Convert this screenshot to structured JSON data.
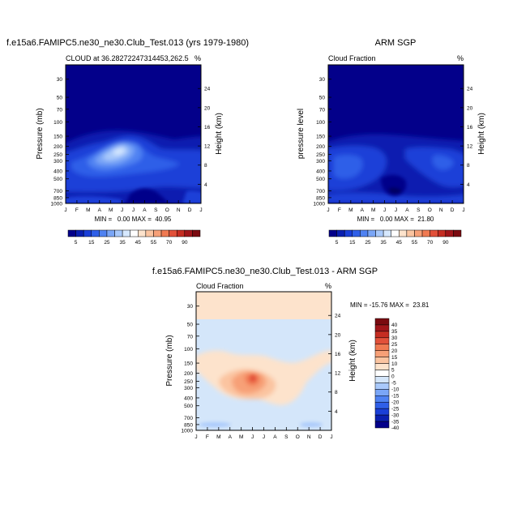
{
  "colors": {
    "model_fill_top": "#03008a",
    "obs_fill_top": "#03008a",
    "diff_fill_top": "#fde3cc",
    "diff_fill_bottom": "#d4e6fa"
  },
  "chart_data": [
    {
      "type": "heatmap",
      "id": "model",
      "title": "f.e15a6.FAMIPC5.ne30_ne30.Club_Test.013 (yrs 1979-1980)",
      "subtitle_left": "CLOUD at 36.28272247314453,262.5",
      "subtitle_right": "%",
      "ylabel": "Pressure (mb)",
      "ylabel_right": "Height (km)",
      "x_ticks": [
        "J",
        "F",
        "M",
        "A",
        "M",
        "J",
        "J",
        "A",
        "S",
        "O",
        "N",
        "D",
        "J"
      ],
      "y_ticks": [
        30,
        50,
        70,
        100,
        150,
        200,
        250,
        300,
        400,
        500,
        700,
        850,
        1000
      ],
      "y_right_ticks": [
        24,
        20,
        16,
        12,
        8,
        4
      ],
      "y_scale": "log",
      "ylim": [
        1000,
        20
      ],
      "stats": "MIN =   0.00 MAX =  40.95",
      "min": 0.0,
      "max": 40.95,
      "peak": {
        "month": "Jun",
        "pressure_mb": 230,
        "value": 40
      }
    },
    {
      "type": "heatmap",
      "id": "obs",
      "title": "ARM SGP",
      "subtitle_left": "Cloud Fraction",
      "subtitle_right": "%",
      "ylabel": "pressure level",
      "ylabel_right": "Height (km)",
      "x_ticks": [
        "J",
        "F",
        "M",
        "A",
        "M",
        "J",
        "J",
        "A",
        "S",
        "O",
        "N",
        "D",
        "J"
      ],
      "y_ticks": [
        30,
        50,
        70,
        100,
        150,
        200,
        250,
        300,
        400,
        500,
        700,
        850,
        1000
      ],
      "y_right_ticks": [
        24,
        20,
        16,
        12,
        8,
        4
      ],
      "y_scale": "log",
      "ylim": [
        1000,
        20
      ],
      "stats": "MIN =   0.00 MAX =  21.80",
      "min": 0.0,
      "max": 21.8
    },
    {
      "type": "heatmap",
      "id": "diff",
      "title": "f.e15a6.FAMIPC5.ne30_ne30.Club_Test.013 - ARM SGP",
      "subtitle_left": "Cloud Fraction",
      "subtitle_right": "%",
      "ylabel": "Pressure (mb)",
      "ylabel_right": "Height (km)",
      "x_ticks": [
        "J",
        "F",
        "M",
        "A",
        "M",
        "J",
        "J",
        "A",
        "S",
        "O",
        "N",
        "D",
        "J"
      ],
      "y_ticks": [
        30,
        50,
        70,
        100,
        150,
        200,
        250,
        300,
        400,
        500,
        700,
        850,
        1000
      ],
      "y_right_ticks": [
        24,
        20,
        16,
        12,
        8,
        4
      ],
      "y_scale": "log",
      "ylim": [
        1000,
        20
      ],
      "stats": "MIN = -15.76 MAX =  23.81",
      "min": -15.76,
      "max": 23.81,
      "peak": {
        "month": "Jun",
        "pressure_mb": 230,
        "value": 23.81
      }
    }
  ],
  "colorbar_abs": {
    "labels": [
      "5",
      "15",
      "25",
      "35",
      "45",
      "55",
      "70",
      "90"
    ],
    "colors": [
      "#03008a",
      "#0a1fb0",
      "#1a3fd8",
      "#2f5fe8",
      "#4f82f2",
      "#7aa6f7",
      "#a9c9fb",
      "#d6e8fe",
      "#ffffff",
      "#fde3cc",
      "#fbc4a0",
      "#f7a077",
      "#f07a52",
      "#e2513a",
      "#c52d22",
      "#a0151a",
      "#7a0a10"
    ]
  },
  "colorbar_diff": {
    "labels": [
      "40",
      "35",
      "30",
      "25",
      "20",
      "15",
      "10",
      "5",
      "0",
      "-5",
      "-10",
      "-15",
      "-20",
      "-25",
      "-30",
      "-35",
      "-40"
    ],
    "colors": [
      "#7a0a10",
      "#a0151a",
      "#c52d22",
      "#e2513a",
      "#f07a52",
      "#f7a077",
      "#fbc4a0",
      "#fde3cc",
      "#ffffff",
      "#d4e6fa",
      "#a9c9fb",
      "#7aa6f7",
      "#4f82f2",
      "#2f5fe8",
      "#1a3fd8",
      "#0a1fb0",
      "#03008a"
    ]
  }
}
